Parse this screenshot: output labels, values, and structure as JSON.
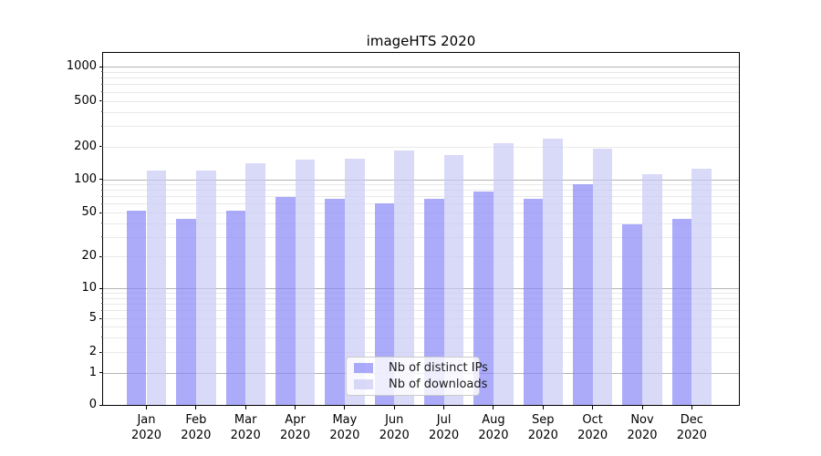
{
  "chart_data": {
    "type": "bar",
    "title": "imageHTS 2020",
    "categories": [
      "Jan",
      "Feb",
      "Mar",
      "Apr",
      "May",
      "Jun",
      "Jul",
      "Aug",
      "Sep",
      "Oct",
      "Nov",
      "Dec"
    ],
    "category_year": "2020",
    "series": [
      {
        "name": "Nb of distinct IPs",
        "color": "#8787f8",
        "opacity": 0.7,
        "values": [
          52,
          44,
          52,
          69,
          66,
          61,
          66,
          78,
          66,
          91,
          39,
          44
        ]
      },
      {
        "name": "Nb of downloads",
        "color": "#c9c9f5",
        "opacity": 0.7,
        "values": [
          121,
          121,
          140,
          152,
          155,
          184,
          167,
          215,
          233,
          190,
          112,
          124
        ]
      }
    ],
    "xlabel": "",
    "ylabel": "",
    "yscale": "symlog",
    "yticks": [
      0,
      1,
      2,
      5,
      10,
      20,
      50,
      100,
      200,
      500,
      1000
    ],
    "ylim": [
      0,
      1300
    ],
    "grid": true,
    "grid_major_color": "#b2b2b2",
    "grid_minor_color": "#e9e9e9",
    "spine_color": "#000000",
    "legend_position": "lower center"
  }
}
